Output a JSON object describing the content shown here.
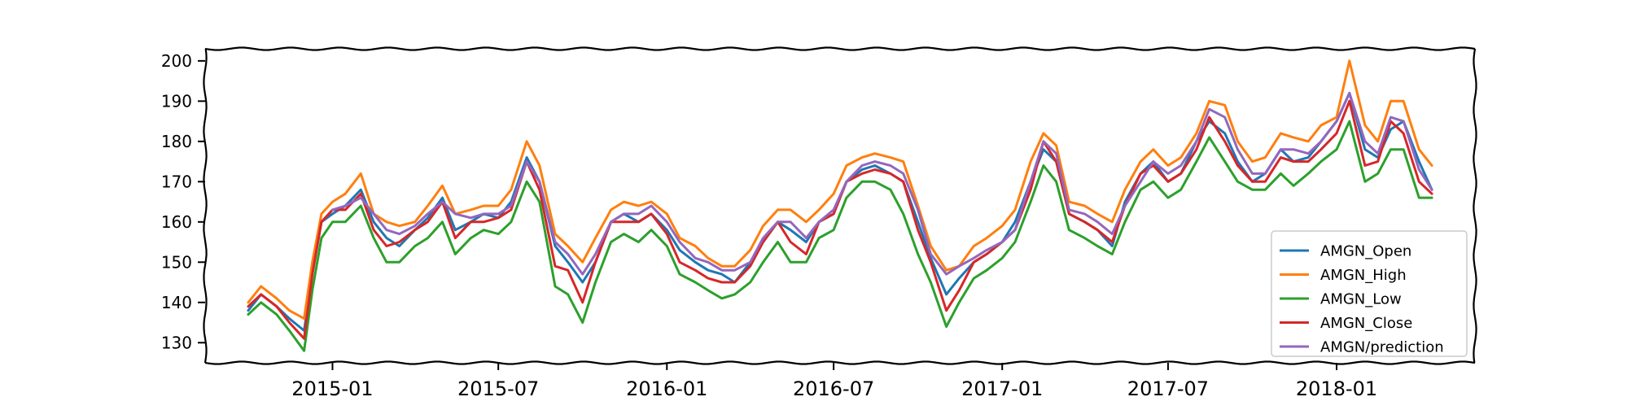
{
  "chart_data": {
    "type": "line",
    "title": "",
    "xlabel": "",
    "ylabel": "",
    "ylim": [
      125,
      203
    ],
    "xlim": [
      "2014-08-15",
      "2018-06-01"
    ],
    "grid": false,
    "legend_position": "bottom-right",
    "x_ticks": [
      {
        "date": "2015-01-01",
        "label": "2015-01"
      },
      {
        "date": "2015-07-01",
        "label": "2015-07"
      },
      {
        "date": "2016-01-01",
        "label": "2016-01"
      },
      {
        "date": "2016-07-01",
        "label": "2016-07"
      },
      {
        "date": "2017-01-01",
        "label": "2017-01"
      },
      {
        "date": "2017-07-01",
        "label": "2017-07"
      },
      {
        "date": "2018-01-01",
        "label": "2018-01"
      }
    ],
    "y_ticks": [
      130,
      140,
      150,
      160,
      170,
      180,
      190,
      200
    ],
    "x": [
      "2014-10-01",
      "2014-10-15",
      "2014-11-01",
      "2014-11-15",
      "2014-12-01",
      "2014-12-10",
      "2014-12-20",
      "2015-01-01",
      "2015-01-15",
      "2015-02-01",
      "2015-02-15",
      "2015-03-01",
      "2015-03-15",
      "2015-04-01",
      "2015-04-15",
      "2015-05-01",
      "2015-05-15",
      "2015-06-01",
      "2015-06-15",
      "2015-07-01",
      "2015-07-15",
      "2015-08-01",
      "2015-08-15",
      "2015-09-01",
      "2015-09-15",
      "2015-10-01",
      "2015-10-15",
      "2015-11-01",
      "2015-11-15",
      "2015-12-01",
      "2015-12-15",
      "2016-01-01",
      "2016-01-15",
      "2016-02-01",
      "2016-02-15",
      "2016-03-01",
      "2016-03-15",
      "2016-04-01",
      "2016-04-15",
      "2016-05-01",
      "2016-05-15",
      "2016-06-01",
      "2016-06-15",
      "2016-07-01",
      "2016-07-15",
      "2016-08-01",
      "2016-08-15",
      "2016-09-01",
      "2016-09-15",
      "2016-10-01",
      "2016-10-15",
      "2016-11-01",
      "2016-11-15",
      "2016-12-01",
      "2016-12-15",
      "2017-01-01",
      "2017-01-15",
      "2017-02-01",
      "2017-02-15",
      "2017-03-01",
      "2017-03-15",
      "2017-04-01",
      "2017-04-15",
      "2017-05-01",
      "2017-05-15",
      "2017-06-01",
      "2017-06-15",
      "2017-07-01",
      "2017-07-15",
      "2017-08-01",
      "2017-08-15",
      "2017-09-01",
      "2017-09-15",
      "2017-10-01",
      "2017-10-15",
      "2017-11-01",
      "2017-11-15",
      "2017-12-01",
      "2017-12-15",
      "2018-01-01",
      "2018-01-15",
      "2018-02-01",
      "2018-02-15",
      "2018-03-01",
      "2018-03-15",
      "2018-04-01",
      "2018-04-15"
    ],
    "series": [
      {
        "name": "AMGN_Open",
        "color": "#1f77b4",
        "values": [
          138,
          142,
          139,
          136,
          133,
          147,
          160,
          162,
          164,
          168,
          160,
          156,
          154,
          158,
          161,
          166,
          158,
          160,
          162,
          161,
          165,
          176,
          170,
          154,
          150,
          145,
          150,
          160,
          162,
          160,
          162,
          158,
          153,
          150,
          148,
          147,
          145,
          150,
          155,
          160,
          158,
          155,
          160,
          162,
          170,
          173,
          174,
          172,
          170,
          160,
          151,
          142,
          146,
          150,
          152,
          155,
          160,
          170,
          178,
          175,
          162,
          160,
          158,
          154,
          165,
          172,
          175,
          170,
          172,
          180,
          185,
          182,
          175,
          170,
          172,
          178,
          175,
          176,
          180,
          185,
          192,
          178,
          176,
          183,
          185,
          175,
          168
        ]
      },
      {
        "name": "AMGN_High",
        "color": "#ff7f0e",
        "values": [
          140,
          144,
          141,
          138,
          136,
          150,
          162,
          165,
          167,
          172,
          162,
          160,
          159,
          160,
          164,
          169,
          162,
          163,
          164,
          164,
          168,
          180,
          174,
          157,
          154,
          150,
          156,
          163,
          165,
          164,
          165,
          162,
          156,
          154,
          151,
          149,
          149,
          153,
          159,
          163,
          163,
          160,
          163,
          167,
          174,
          176,
          177,
          176,
          175,
          164,
          154,
          148,
          149,
          154,
          156,
          159,
          163,
          175,
          182,
          179,
          165,
          164,
          162,
          160,
          168,
          175,
          178,
          174,
          176,
          182,
          190,
          189,
          180,
          175,
          176,
          182,
          181,
          180,
          184,
          186,
          200,
          184,
          180,
          190,
          190,
          178,
          174
        ]
      },
      {
        "name": "AMGN_Low",
        "color": "#2ca02c",
        "values": [
          137,
          140,
          137,
          133,
          128,
          143,
          156,
          160,
          160,
          164,
          156,
          150,
          150,
          154,
          156,
          160,
          152,
          156,
          158,
          157,
          160,
          170,
          165,
          144,
          142,
          135,
          145,
          155,
          157,
          155,
          158,
          154,
          147,
          145,
          143,
          141,
          142,
          145,
          150,
          155,
          150,
          150,
          156,
          158,
          166,
          170,
          170,
          168,
          162,
          152,
          145,
          134,
          140,
          146,
          148,
          151,
          155,
          165,
          174,
          170,
          158,
          156,
          154,
          152,
          160,
          168,
          170,
          166,
          168,
          175,
          181,
          175,
          170,
          168,
          168,
          172,
          169,
          172,
          175,
          178,
          185,
          170,
          172,
          178,
          178,
          166,
          166
        ]
      },
      {
        "name": "AMGN_Close",
        "color": "#d62728",
        "values": [
          139,
          142,
          139,
          135,
          131,
          147,
          160,
          163,
          163,
          167,
          158,
          154,
          155,
          158,
          160,
          165,
          156,
          160,
          160,
          161,
          163,
          175,
          168,
          149,
          148,
          140,
          150,
          160,
          160,
          160,
          162,
          157,
          150,
          148,
          146,
          145,
          145,
          149,
          155,
          160,
          155,
          152,
          160,
          162,
          170,
          172,
          173,
          172,
          170,
          158,
          150,
          138,
          143,
          150,
          152,
          155,
          158,
          168,
          180,
          175,
          162,
          160,
          158,
          155,
          164,
          172,
          174,
          170,
          172,
          178,
          186,
          180,
          174,
          170,
          170,
          176,
          175,
          175,
          178,
          182,
          190,
          174,
          175,
          185,
          182,
          170,
          167
        ]
      },
      {
        "name": "AMGN/prediction",
        "color": "#9467bd",
        "values": [
          null,
          null,
          null,
          null,
          null,
          null,
          null,
          163,
          164,
          166,
          162,
          158,
          157,
          159,
          162,
          165,
          162,
          161,
          162,
          162,
          164,
          175,
          170,
          155,
          152,
          147,
          152,
          160,
          162,
          162,
          164,
          160,
          155,
          151,
          150,
          148,
          148,
          150,
          156,
          160,
          160,
          156,
          160,
          163,
          170,
          174,
          175,
          174,
          172,
          163,
          152,
          147,
          149,
          151,
          153,
          155,
          158,
          170,
          180,
          177,
          163,
          162,
          160,
          157,
          164,
          170,
          175,
          172,
          174,
          180,
          188,
          186,
          178,
          172,
          172,
          178,
          178,
          177,
          180,
          185,
          192,
          180,
          177,
          186,
          185,
          173,
          168
        ]
      }
    ]
  }
}
